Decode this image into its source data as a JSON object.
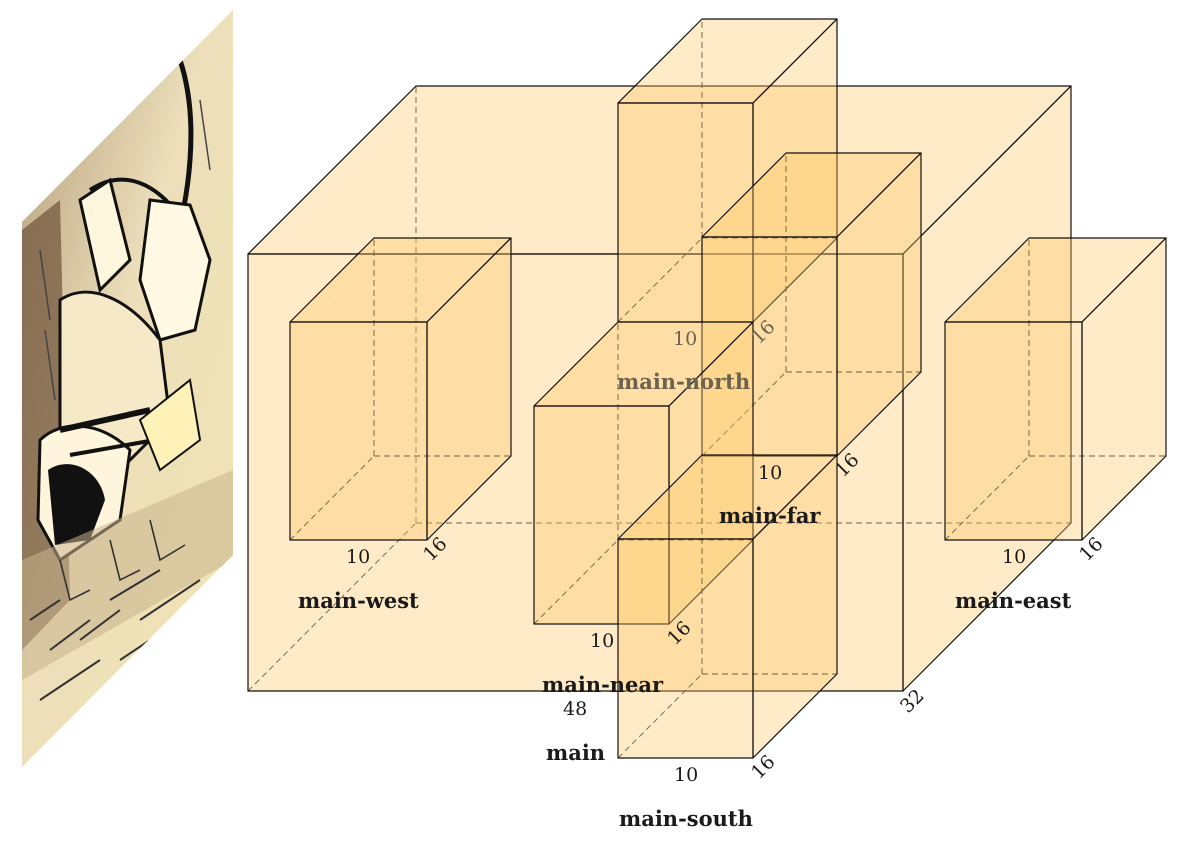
{
  "colors": {
    "box_fill": "#ffc766",
    "edge": "#111111"
  },
  "image_panel": {
    "description_icon": "sketch-image-icon"
  },
  "boxes": {
    "main": {
      "label": "main",
      "width": "48",
      "depth": "32"
    },
    "main_north": {
      "label": "main-north",
      "width": "10",
      "depth": "16"
    },
    "main_far": {
      "label": "main-far",
      "width": "10",
      "depth": "16"
    },
    "main_west": {
      "label": "main-west",
      "width": "10",
      "depth": "16"
    },
    "main_east": {
      "label": "main-east",
      "width": "10",
      "depth": "16"
    },
    "main_near": {
      "label": "main-near",
      "width": "10",
      "depth": "16"
    },
    "main_south": {
      "label": "main-south",
      "width": "10",
      "depth": "16"
    }
  }
}
